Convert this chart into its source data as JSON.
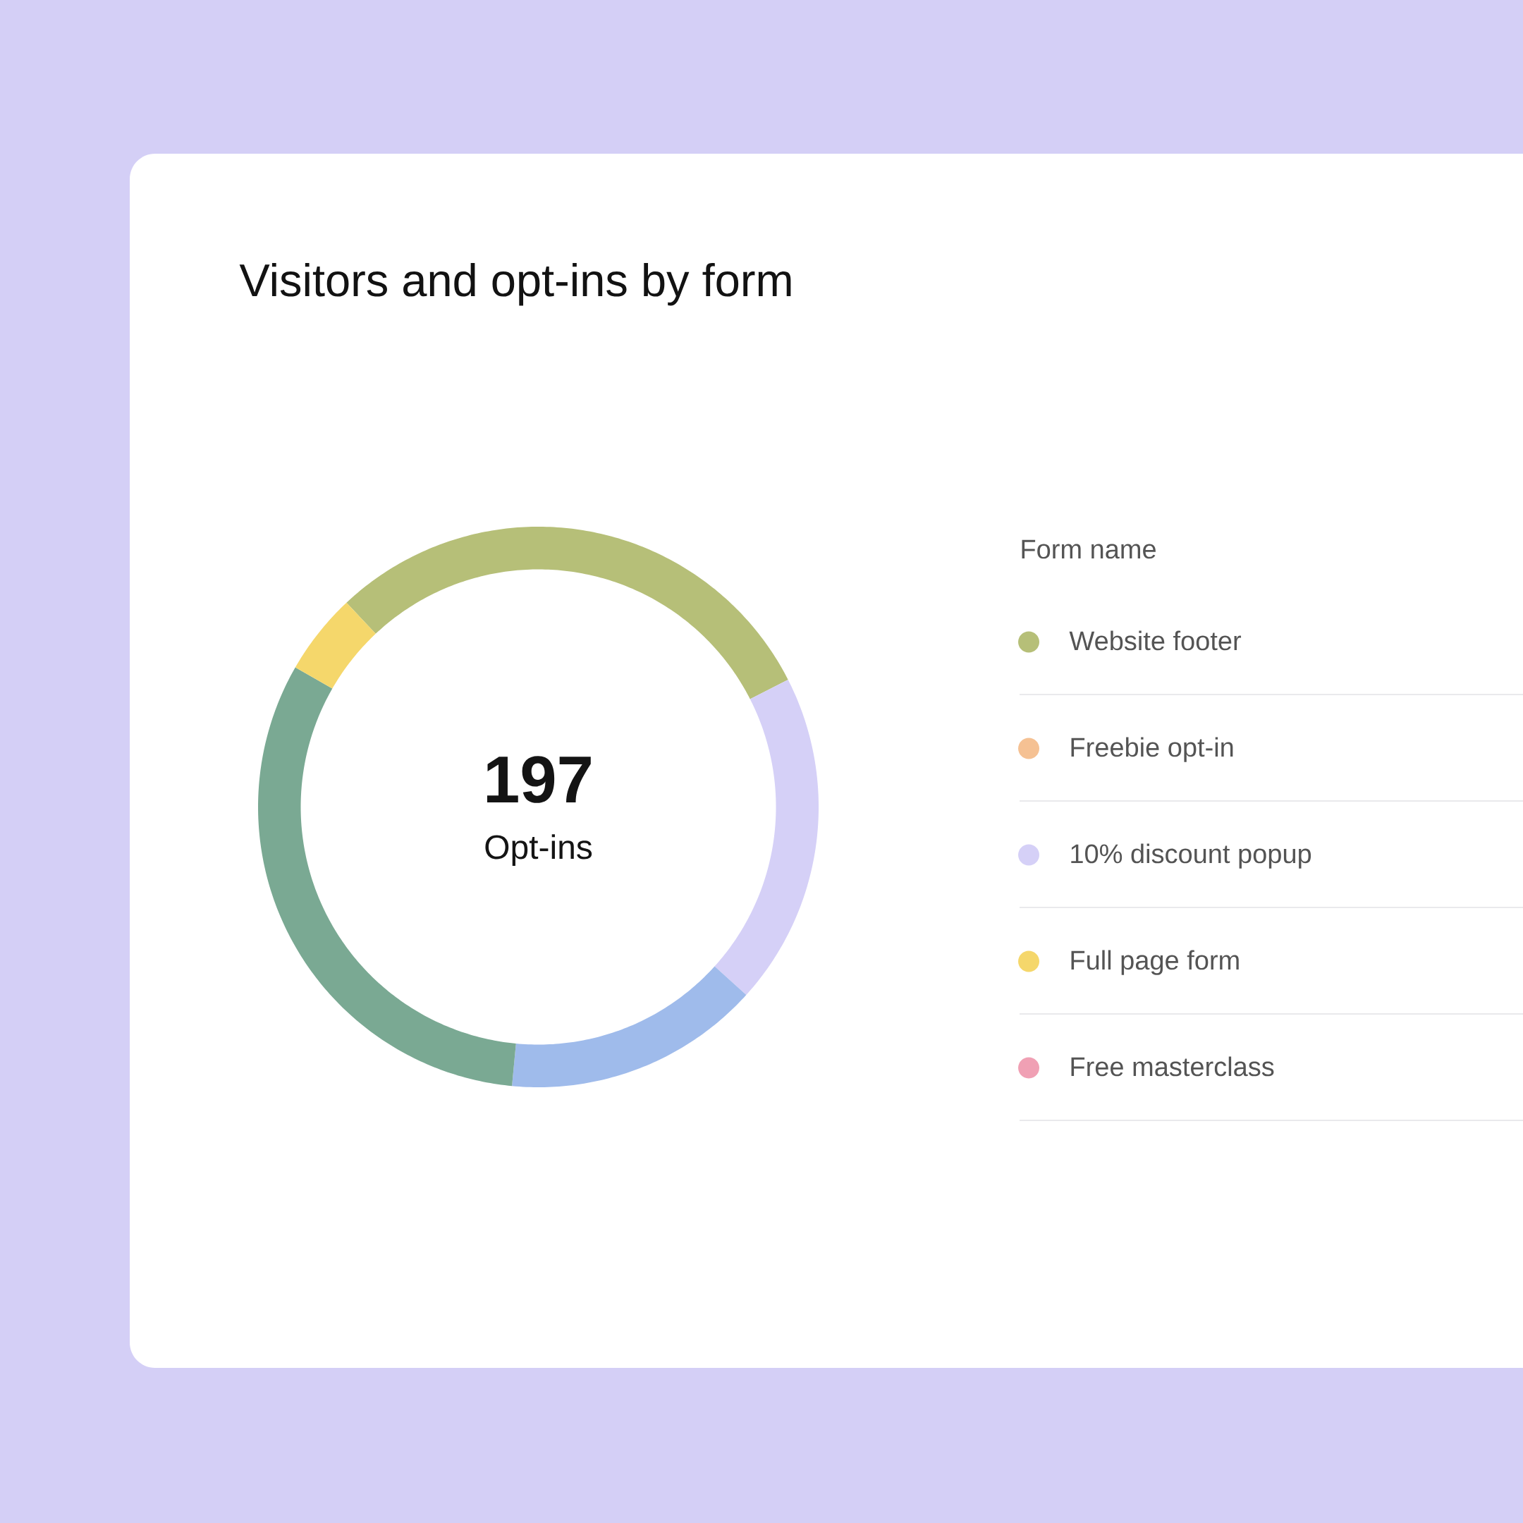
{
  "chart_data": {
    "type": "donut",
    "title": "Visitors and opt-ins by form",
    "legend_title": "Form name",
    "categories": [
      "Website footer",
      "Freebie opt-in",
      "10% discount popup",
      null,
      null,
      "Full page form",
      "Free masterclass"
    ],
    "values": [
      29.5,
      0,
      19.2,
      14.8,
      31.8,
      4.7,
      0
    ],
    "colors": [
      "#b6bf78",
      "#f5c193",
      "#d5d0f7",
      "#9fbbeb",
      "#7aa993",
      "#f5d76b",
      "#f0a0b4"
    ],
    "annotations": [
      "197",
      "Opt-ins"
    ],
    "legend": "right"
  }
}
